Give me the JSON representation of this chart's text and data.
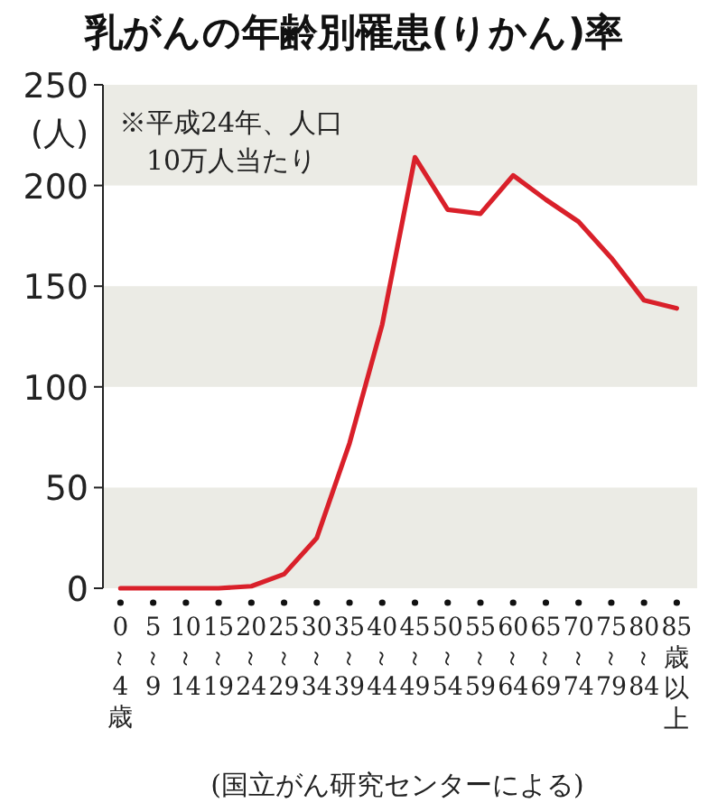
{
  "chart_data": {
    "type": "line",
    "title": "乳がんの年齢別罹患(りかん)率",
    "ylabel": "(人)",
    "categories": [
      "0～4歳",
      "5～9",
      "10～14",
      "15～19",
      "20～24",
      "25～29",
      "30～34",
      "35～39",
      "40～44",
      "45～49",
      "50～54",
      "55～59",
      "60～64",
      "65～69",
      "70～74",
      "75～79",
      "80～84",
      "85歳以上"
    ],
    "series": [
      {
        "color": "#d9202a",
        "values": [
          0,
          0,
          0,
          0,
          1,
          7,
          25,
          72,
          131,
          214,
          188,
          186,
          205,
          193,
          182,
          164,
          143,
          139
        ]
      }
    ],
    "ylim": [
      0,
      250
    ],
    "yticks": [
      0,
      50,
      100,
      150,
      200,
      250
    ],
    "bands": [
      {
        "axis": "y",
        "from": 0,
        "to": 50,
        "color": "#ebebe5"
      },
      {
        "axis": "y",
        "from": 100,
        "to": 150,
        "color": "#ebebe5"
      },
      {
        "axis": "y",
        "from": 200,
        "to": 250,
        "color": "#ebebe5"
      }
    ],
    "annotations": [
      "※平成24年、人口\n10万人当たり",
      "(国立がん研究センターによる)"
    ],
    "grid": false,
    "marker": "none",
    "line_style": "solid"
  }
}
